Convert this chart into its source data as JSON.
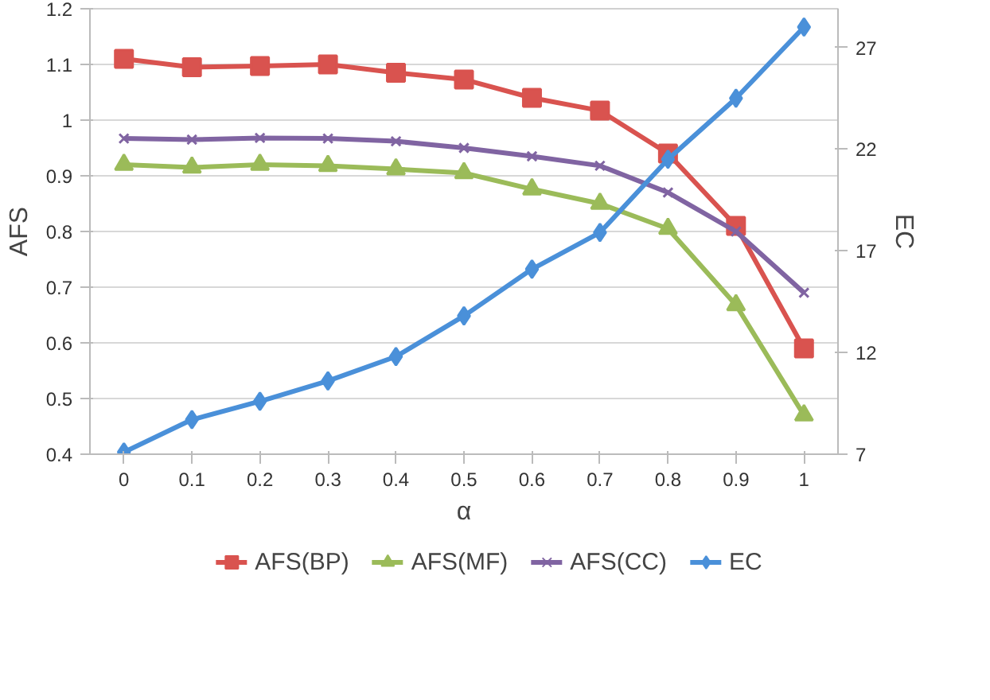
{
  "chart_data": {
    "type": "line",
    "xlabel": "α",
    "ylabel": "AFS",
    "y2label": "EC",
    "x": [
      0,
      0.1,
      0.2,
      0.3,
      0.4,
      0.5,
      0.6,
      0.7,
      0.8,
      0.9,
      1
    ],
    "xlim": [
      -0.05,
      1.05
    ],
    "xticks": [
      0,
      0.1,
      0.2,
      0.3,
      0.4,
      0.5,
      0.6,
      0.7,
      0.8,
      0.9,
      1
    ],
    "ylim": [
      0.4,
      1.2
    ],
    "yticks": [
      0.4,
      0.5,
      0.6,
      0.7,
      0.8,
      0.9,
      1,
      1.1,
      1.2
    ],
    "y2lim": [
      7,
      28.9
    ],
    "y2ticks": [
      7,
      12,
      17,
      22,
      27
    ],
    "grid": "y",
    "legend": "bottom",
    "series": [
      {
        "name": "AFS(BP)",
        "color": "#d9534f",
        "marker": "square",
        "values": [
          1.11,
          1.095,
          1.097,
          1.1,
          1.085,
          1.073,
          1.04,
          1.017,
          0.94,
          0.81,
          0.59
        ]
      },
      {
        "name": "AFS(MF)",
        "color": "#9bbb59",
        "marker": "triangle",
        "values": [
          0.92,
          0.915,
          0.92,
          0.918,
          0.912,
          0.905,
          0.876,
          0.85,
          0.805,
          0.668,
          0.47
        ]
      },
      {
        "name": "AFS(CC)",
        "color": "#8064a2",
        "marker": "cross",
        "values": [
          0.967,
          0.965,
          0.968,
          0.967,
          0.962,
          0.95,
          0.935,
          0.918,
          0.87,
          0.8,
          0.69
        ]
      },
      {
        "name": "EC",
        "color": "#4a90d9",
        "marker": "diamond",
        "axis": "y2",
        "values": [
          7.1,
          8.7,
          9.6,
          10.6,
          11.8,
          13.8,
          16.1,
          17.9,
          21.5,
          24.5,
          28.0
        ]
      }
    ]
  }
}
